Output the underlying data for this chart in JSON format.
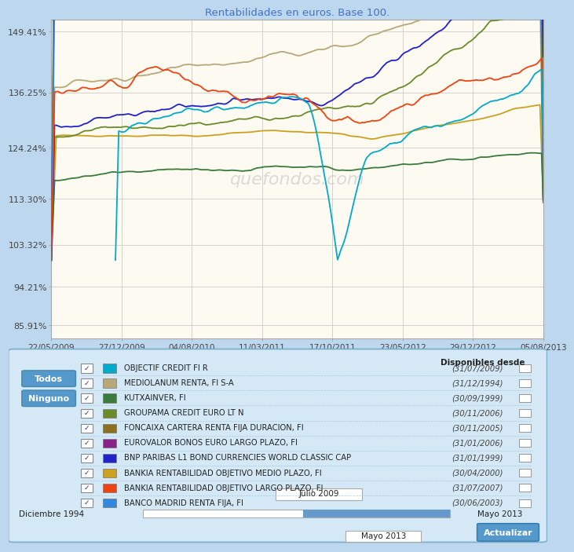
{
  "title": "Rentabilidades en euros. Base 100.",
  "title_color": "#4472C4",
  "background_chart": "#FDFAF2",
  "background_figure": "#BDD7EE",
  "chart_border": "#AAAAAA",
  "yticks": [
    "85.91%",
    "94.21%",
    "103.32%",
    "113.30%",
    "124.24%",
    "136.25%",
    "149.41%"
  ],
  "ytick_vals": [
    85.91,
    94.21,
    103.32,
    113.3,
    124.24,
    136.25,
    149.41
  ],
  "xtick_labels": [
    "22/05/2009",
    "27/12/2009",
    "04/08/2010",
    "11/03/2011",
    "17/10/2011",
    "23/05/2012",
    "29/12/2012",
    "05/08/2013"
  ],
  "series": [
    {
      "name": "OBJECTIF CREDIT FI R",
      "color": "#00AACC",
      "date": "(31/07/2009)"
    },
    {
      "name": "MEDIOLANUM RENTA, FI S-A",
      "color": "#B8A878",
      "date": "(31/12/1994)"
    },
    {
      "name": "KUTXAINVER, FI",
      "color": "#3A7A3A",
      "date": "(30/09/1999)"
    },
    {
      "name": "GROUPAMA CREDIT EURO LT N",
      "color": "#6B8B2A",
      "date": "(30/11/2006)"
    },
    {
      "name": "FONCAIXA CARTERA RENTA FIJA DURACION, FI",
      "color": "#8B7020",
      "date": "(30/11/2005)"
    },
    {
      "name": "EUROVALOR BONOS EURO LARGO PLAZO, FI",
      "color": "#882288",
      "date": "(31/01/2006)"
    },
    {
      "name": "BNP PARIBAS L1 BOND CURRENCIES WORLD CLASSIC CAP",
      "color": "#2222CC",
      "date": "(31/01/1999)"
    },
    {
      "name": "BANKIA RENTABILIDAD OBJETIVO MEDIO PLAZO, FI",
      "color": "#CCA020",
      "date": "(30/04/2000)"
    },
    {
      "name": "BANKIA RENTABILIDAD OBJETIVO LARGO PLAZO, FI",
      "color": "#EE4411",
      "date": "(31/07/2007)"
    },
    {
      "name": "BANCO MADRID RENTA FIJA, FI",
      "color": "#3388DD",
      "date": "(30/06/2003)"
    }
  ],
  "date_range_label_left": "Diciembre 1994",
  "date_range_label_right": "Mayo 2013",
  "date_range_start": "Julio 2009",
  "date_range_end": "Mayo 2013",
  "actualizar_label": "Actualizar",
  "disponibles_desde": "Disponibles desde"
}
